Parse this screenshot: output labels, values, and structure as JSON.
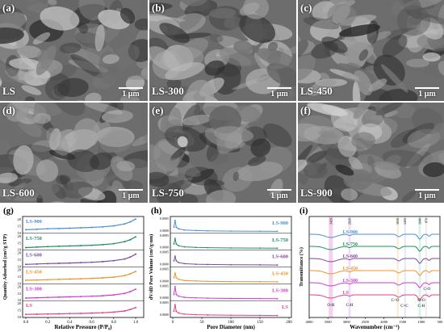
{
  "sem_panels": [
    {
      "letter": "(a)",
      "sample": "LS",
      "scale_label": "1 μm"
    },
    {
      "letter": "(b)",
      "sample": "LS-300",
      "scale_label": "1 μm"
    },
    {
      "letter": "(c)",
      "sample": "LS-450",
      "scale_label": "1 μm"
    },
    {
      "letter": "(d)",
      "sample": "LS-600",
      "scale_label": "1 μm"
    },
    {
      "letter": "(e)",
      "sample": "LS-750",
      "scale_label": "1 μm"
    },
    {
      "letter": "(f)",
      "sample": "LS-900",
      "scale_label": "1 μm"
    }
  ],
  "chart_data": [
    {
      "panel": "(g)",
      "type": "line",
      "xlabel": "Relative Pressure (P/P₀)",
      "ylabel": "Quantity Adsorbed (cm³/g STP)",
      "xticks": [
        "0.0",
        "0.2",
        "0.4",
        "0.6",
        "0.8",
        "1.0"
      ],
      "series": [
        {
          "name": "LS-900",
          "color": "#4c8fcf",
          "yticks": [
            "20",
            "15",
            "10"
          ],
          "x": [
            0.0,
            0.1,
            0.2,
            0.3,
            0.4,
            0.5,
            0.6,
            0.7,
            0.8,
            0.9,
            0.95,
            1.0
          ],
          "y": [
            10,
            10.5,
            11,
            11.3,
            11.6,
            12,
            12.4,
            13,
            14,
            16,
            18,
            21
          ]
        },
        {
          "name": "LS-750",
          "color": "#1f8f5e",
          "yticks": [
            "20",
            "15",
            "10"
          ],
          "x": [
            0.0,
            0.1,
            0.2,
            0.3,
            0.4,
            0.5,
            0.6,
            0.7,
            0.8,
            0.9,
            0.95,
            1.0
          ],
          "y": [
            9,
            9.5,
            10,
            10.3,
            10.6,
            11,
            11.4,
            12,
            13,
            15,
            17,
            20
          ]
        },
        {
          "name": "LS-600",
          "color": "#7b4aa0",
          "yticks": [
            "20",
            "15",
            "10"
          ],
          "x": [
            0.0,
            0.1,
            0.2,
            0.3,
            0.4,
            0.5,
            0.6,
            0.7,
            0.8,
            0.9,
            0.95,
            1.0
          ],
          "y": [
            9,
            9.4,
            9.8,
            10.1,
            10.4,
            10.8,
            11.2,
            11.8,
            12.8,
            14.5,
            16.5,
            19.5
          ]
        },
        {
          "name": "LS-450",
          "color": "#e8952d",
          "yticks": [
            "20",
            "15",
            "10"
          ],
          "x": [
            0.0,
            0.1,
            0.2,
            0.3,
            0.4,
            0.5,
            0.6,
            0.7,
            0.8,
            0.9,
            0.95,
            1.0
          ],
          "y": [
            10,
            10.3,
            10.6,
            10.9,
            11.2,
            11.5,
            11.9,
            12.4,
            13.2,
            14.8,
            16.5,
            19
          ]
        },
        {
          "name": "LS-300",
          "color": "#d03bd0",
          "yticks": [
            "20",
            "15",
            "10"
          ],
          "x": [
            0.0,
            0.1,
            0.2,
            0.3,
            0.4,
            0.5,
            0.6,
            0.7,
            0.8,
            0.9,
            0.95,
            1.0
          ],
          "y": [
            9,
            9.3,
            9.6,
            9.9,
            10.2,
            10.5,
            10.9,
            11.4,
            12.2,
            13.8,
            15.5,
            18
          ]
        },
        {
          "name": "LS",
          "color": "#e2408a",
          "yticks": [
            "20",
            "15",
            "10"
          ],
          "x": [
            0.0,
            0.1,
            0.2,
            0.3,
            0.4,
            0.5,
            0.6,
            0.7,
            0.8,
            0.9,
            0.95,
            1.0
          ],
          "y": [
            9.5,
            9.7,
            9.9,
            10.1,
            10.3,
            10.5,
            10.8,
            11.2,
            11.8,
            13,
            14.5,
            16.5
          ]
        }
      ]
    },
    {
      "panel": "(h)",
      "type": "line",
      "xlabel": "Pore Diameter (nm)",
      "ylabel": "dV/dD Pore Volume (cm³/g·nm)",
      "xticks": [
        "0",
        "50",
        "100",
        "150",
        "200"
      ],
      "yticks": [
        "0.0000",
        "0.0005"
      ],
      "series": [
        {
          "name": "LS-900",
          "color": "#4c8fcf",
          "x": [
            2,
            4,
            6,
            10,
            20,
            40,
            60,
            100,
            150,
            180
          ],
          "y": [
            0.0008,
            0.002,
            0.0008,
            0.0005,
            0.0003,
            0.0002,
            0.00015,
            0.0001,
            8e-05,
            6e-05
          ]
        },
        {
          "name": "LS-750",
          "color": "#1f8f5e",
          "x": [
            2,
            4,
            6,
            10,
            20,
            40,
            60,
            100,
            150,
            180
          ],
          "y": [
            0.0008,
            0.0018,
            0.0008,
            0.0005,
            0.0003,
            0.0002,
            0.00015,
            0.0001,
            8e-05,
            6e-05
          ]
        },
        {
          "name": "LS-600",
          "color": "#7b4aa0",
          "x": [
            2,
            4,
            6,
            10,
            20,
            40,
            60,
            100,
            150,
            180
          ],
          "y": [
            0.0008,
            0.0016,
            0.0008,
            0.0005,
            0.0003,
            0.0002,
            0.00015,
            0.0001,
            8e-05,
            6e-05
          ]
        },
        {
          "name": "LS-450",
          "color": "#e8952d",
          "x": [
            2,
            4,
            6,
            10,
            20,
            40,
            60,
            100,
            150,
            180
          ],
          "y": [
            0.0008,
            0.0016,
            0.0008,
            0.0005,
            0.0003,
            0.0002,
            0.00015,
            0.0001,
            8e-05,
            6e-05
          ]
        },
        {
          "name": "LS-300",
          "color": "#d03bd0",
          "x": [
            2,
            4,
            6,
            10,
            20,
            40,
            60,
            100,
            150,
            180
          ],
          "y": [
            0.0008,
            0.0022,
            0.0008,
            0.0005,
            0.0003,
            0.0002,
            0.00015,
            0.0001,
            8e-05,
            6e-05
          ]
        },
        {
          "name": "LS",
          "color": "#e2408a",
          "x": [
            2,
            4,
            6,
            10,
            20,
            40,
            60,
            100,
            150,
            180
          ],
          "y": [
            0.0008,
            0.002,
            0.0008,
            0.0005,
            0.0003,
            0.0002,
            0.00015,
            0.0001,
            8e-05,
            6e-05
          ]
        }
      ]
    },
    {
      "panel": "(i)",
      "type": "line",
      "xlabel": "Wavenumber (cm⁻¹)",
      "ylabel": "Transmittance (%)",
      "xticks": [
        "4000",
        "3500",
        "3000",
        "2500",
        "2000",
        "1500",
        "1000",
        "500"
      ],
      "xlim": [
        4000,
        500
      ],
      "peak_labels": [
        "3420",
        "2920",
        "1630",
        "1435",
        "1040",
        "870"
      ],
      "band_labels": [
        "O-H",
        "C-H",
        "C=O",
        "C=C",
        "Si-O",
        "C-H",
        "C-O"
      ],
      "series": [
        {
          "name": "LS-900",
          "color": "#4c8fcf"
        },
        {
          "name": "LS-750",
          "color": "#1f8f5e"
        },
        {
          "name": "LS-600",
          "color": "#7b4aa0"
        },
        {
          "name": "LS-450",
          "color": "#e8952d"
        },
        {
          "name": "LS-300",
          "color": "#d03bd0"
        },
        {
          "name": "LS",
          "color": "#e2408a"
        }
      ]
    }
  ]
}
